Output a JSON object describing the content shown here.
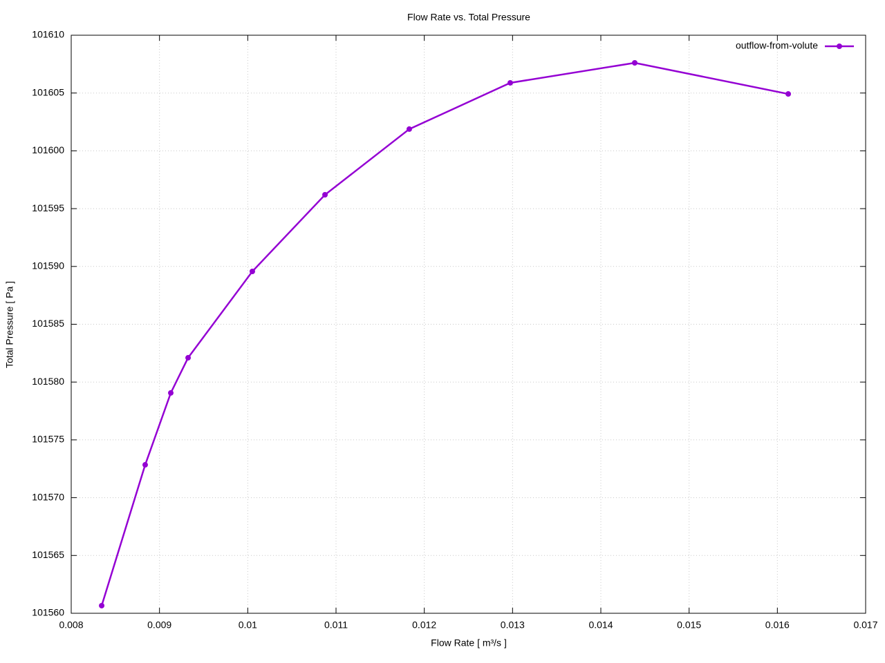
{
  "chart_data": {
    "type": "line",
    "title": "Flow Rate vs. Total Pressure",
    "x_label": "Flow Rate [ m³/s ]",
    "y_label": "Total Pressure [ Pa ]",
    "x": [
      0.008345,
      0.008838,
      0.009128,
      0.009324,
      0.010052,
      0.010875,
      0.01183,
      0.012974,
      0.014384,
      0.016123
    ],
    "series": [
      {
        "name": "outflow-from-volute",
        "color": "#9400d3",
        "values": [
          101560.66,
          101572.84,
          101579.06,
          101582.1,
          101589.57,
          101596.2,
          101601.88,
          101605.88,
          101607.61,
          101604.92
        ]
      }
    ],
    "xlim": [
      0.008,
      0.017
    ],
    "xticks": [
      0.008,
      0.009,
      0.01,
      0.011,
      0.012,
      0.013,
      0.014,
      0.015,
      0.016,
      0.017
    ],
    "ylim": [
      101560,
      101610
    ],
    "yticks": [
      101560,
      101565,
      101570,
      101575,
      101580,
      101585,
      101590,
      101595,
      101600,
      101605,
      101610
    ],
    "grid": true,
    "legend_position": "top-right"
  }
}
